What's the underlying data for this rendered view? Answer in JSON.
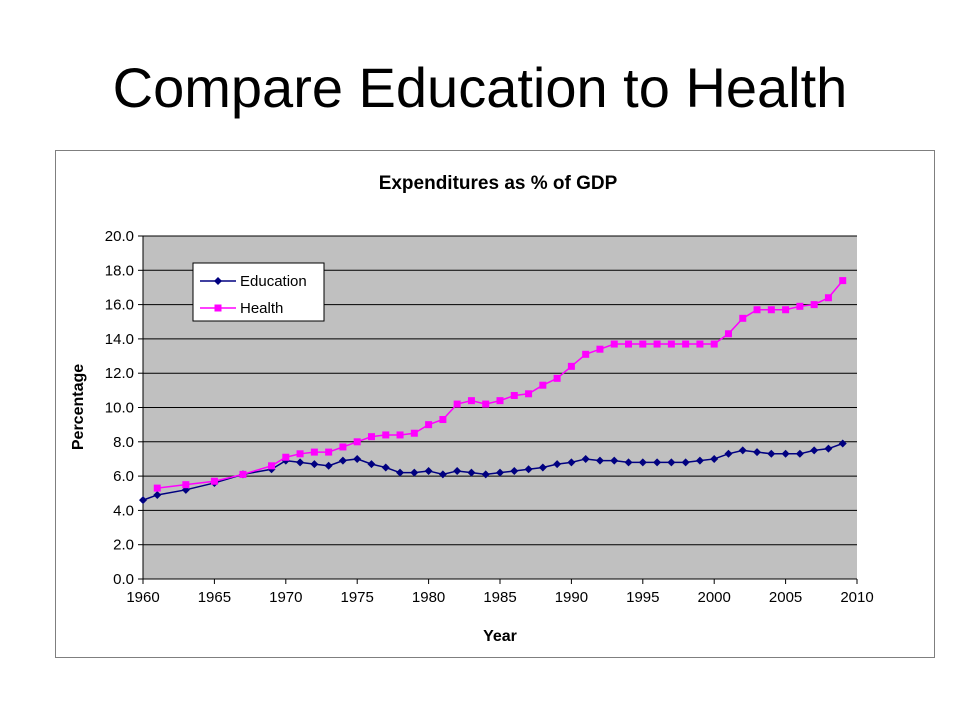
{
  "slide": {
    "title": "Compare Education to Health"
  },
  "chart_data": {
    "type": "line",
    "title": "Expenditures as % of GDP",
    "xlabel": "Year",
    "ylabel": "Percentage",
    "xlim": [
      1960,
      2010
    ],
    "ylim": [
      0,
      20
    ],
    "x_ticks": [
      "1960",
      "1965",
      "1970",
      "1975",
      "1980",
      "1985",
      "1990",
      "1995",
      "2000",
      "2005",
      "2010"
    ],
    "y_ticks": [
      "0.0",
      "2.0",
      "4.0",
      "6.0",
      "8.0",
      "10.0",
      "12.0",
      "14.0",
      "16.0",
      "18.0",
      "20.0"
    ],
    "grid": "horizontal",
    "plot_background": "#c0c0c0",
    "legend_position": "top-left",
    "series": [
      {
        "name": "Education",
        "color": "#000080",
        "marker": "diamond",
        "points": [
          [
            1960,
            4.6
          ],
          [
            1961,
            4.9
          ],
          [
            1963,
            5.2
          ],
          [
            1965,
            5.6
          ],
          [
            1967,
            6.1
          ],
          [
            1969,
            6.4
          ],
          [
            1970,
            6.9
          ],
          [
            1971,
            6.8
          ],
          [
            1972,
            6.7
          ],
          [
            1973,
            6.6
          ],
          [
            1974,
            6.9
          ],
          [
            1975,
            7.0
          ],
          [
            1976,
            6.7
          ],
          [
            1977,
            6.5
          ],
          [
            1978,
            6.2
          ],
          [
            1979,
            6.2
          ],
          [
            1980,
            6.3
          ],
          [
            1981,
            6.1
          ],
          [
            1982,
            6.3
          ],
          [
            1983,
            6.2
          ],
          [
            1984,
            6.1
          ],
          [
            1985,
            6.2
          ],
          [
            1986,
            6.3
          ],
          [
            1987,
            6.4
          ],
          [
            1988,
            6.5
          ],
          [
            1989,
            6.7
          ],
          [
            1990,
            6.8
          ],
          [
            1991,
            7.0
          ],
          [
            1992,
            6.9
          ],
          [
            1993,
            6.9
          ],
          [
            1994,
            6.8
          ],
          [
            1995,
            6.8
          ],
          [
            1996,
            6.8
          ],
          [
            1997,
            6.8
          ],
          [
            1998,
            6.8
          ],
          [
            1999,
            6.9
          ],
          [
            2000,
            7.0
          ],
          [
            2001,
            7.3
          ],
          [
            2002,
            7.5
          ],
          [
            2003,
            7.4
          ],
          [
            2004,
            7.3
          ],
          [
            2005,
            7.3
          ],
          [
            2006,
            7.3
          ],
          [
            2007,
            7.5
          ],
          [
            2008,
            7.6
          ],
          [
            2009,
            7.9
          ]
        ]
      },
      {
        "name": "Health",
        "color": "#ff00ff",
        "marker": "square",
        "points": [
          [
            1961,
            5.3
          ],
          [
            1963,
            5.5
          ],
          [
            1965,
            5.7
          ],
          [
            1967,
            6.1
          ],
          [
            1969,
            6.6
          ],
          [
            1970,
            7.1
          ],
          [
            1971,
            7.3
          ],
          [
            1972,
            7.4
          ],
          [
            1973,
            7.4
          ],
          [
            1974,
            7.7
          ],
          [
            1975,
            8.0
          ],
          [
            1976,
            8.3
          ],
          [
            1977,
            8.4
          ],
          [
            1978,
            8.4
          ],
          [
            1979,
            8.5
          ],
          [
            1980,
            9.0
          ],
          [
            1981,
            9.3
          ],
          [
            1982,
            10.2
          ],
          [
            1983,
            10.4
          ],
          [
            1984,
            10.2
          ],
          [
            1985,
            10.4
          ],
          [
            1986,
            10.7
          ],
          [
            1987,
            10.8
          ],
          [
            1988,
            11.3
          ],
          [
            1989,
            11.7
          ],
          [
            1990,
            12.4
          ],
          [
            1991,
            13.1
          ],
          [
            1992,
            13.4
          ],
          [
            1993,
            13.7
          ],
          [
            1994,
            13.7
          ],
          [
            1995,
            13.7
          ],
          [
            1996,
            13.7
          ],
          [
            1997,
            13.7
          ],
          [
            1998,
            13.7
          ],
          [
            1999,
            13.7
          ],
          [
            2000,
            13.7
          ],
          [
            2001,
            14.3
          ],
          [
            2002,
            15.2
          ],
          [
            2003,
            15.7
          ],
          [
            2004,
            15.7
          ],
          [
            2005,
            15.7
          ],
          [
            2006,
            15.9
          ],
          [
            2007,
            16.0
          ],
          [
            2008,
            16.4
          ],
          [
            2009,
            17.4
          ]
        ]
      }
    ]
  }
}
